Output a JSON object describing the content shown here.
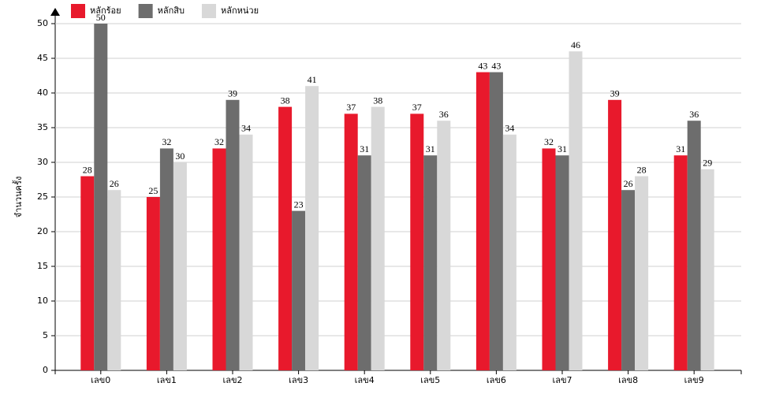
{
  "chart_data": {
    "type": "bar",
    "y_label": "จำนวนครั้ง",
    "categories": [
      "เลข0",
      "เลข1",
      "เลข2",
      "เลข3",
      "เลข4",
      "เลข5",
      "เลข6",
      "เลข7",
      "เลข8",
      "เลข9"
    ],
    "series": [
      {
        "name": "หลักร้อย",
        "color": "#e8192c",
        "values": [
          28,
          25,
          32,
          38,
          37,
          37,
          43,
          32,
          39,
          31
        ]
      },
      {
        "name": "หลักสิบ",
        "color": "#6d6d6d",
        "values": [
          50,
          32,
          39,
          23,
          31,
          31,
          43,
          31,
          26,
          36
        ]
      },
      {
        "name": "หลักหน่วย",
        "color": "#d8d8d8",
        "values": [
          26,
          30,
          34,
          41,
          38,
          36,
          34,
          46,
          28,
          29
        ]
      }
    ],
    "ylim": [
      0,
      50
    ],
    "yticks": [
      0,
      5,
      10,
      15,
      20,
      25,
      30,
      35,
      40,
      45,
      50
    ],
    "grid": true
  }
}
